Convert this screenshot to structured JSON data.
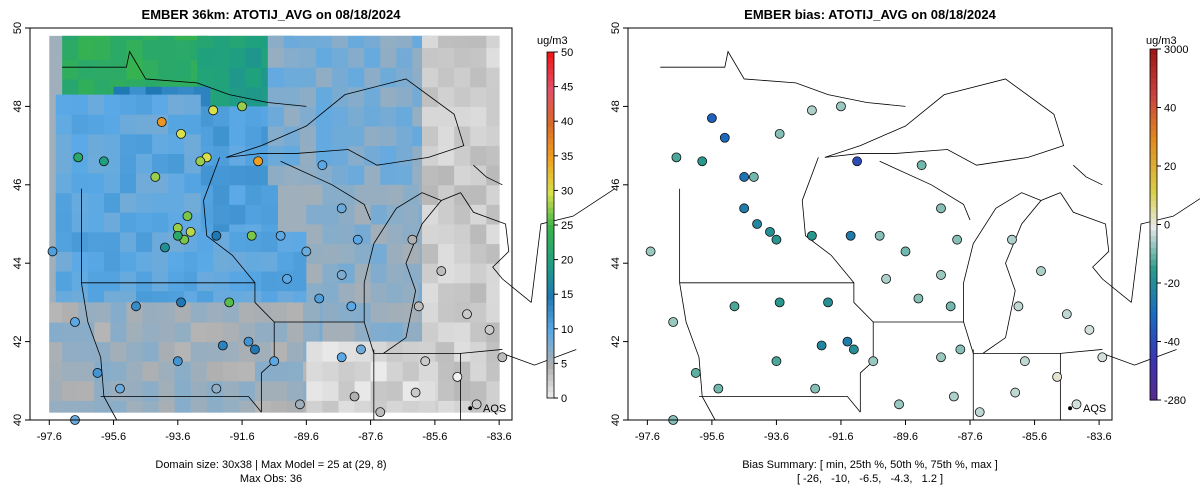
{
  "colors": {
    "blue": "#1a3bb8",
    "green": "#2e9b6a",
    "grey": "#9a9a9a",
    "light": "#e6e6e6",
    "red": "#e01a24"
  },
  "chart_data": [
    {
      "type": "heatmap",
      "title": "EMBER 36km: ATOTIJ_AVG on 08/18/2024",
      "xticks": [
        "-97.6",
        "-95.6",
        "-93.6",
        "-91.6",
        "-89.6",
        "-87.6",
        "-85.6",
        "-83.6"
      ],
      "yticks": [
        "50",
        "48",
        "46",
        "44",
        "42",
        "40"
      ],
      "xlim": [
        -98.2,
        -83.2
      ],
      "ylim": [
        40,
        50
      ],
      "colorbar": {
        "unit": "ug/m3",
        "ticks": [
          "50",
          "45",
          "40",
          "35",
          "30",
          "25",
          "20",
          "15",
          "10",
          "5",
          "0"
        ],
        "range": [
          0,
          50
        ]
      },
      "corner_label": "AQS",
      "footer": [
        "Domain size: 30x38 | Max Model = 25 at (29, 8)",
        "Max Obs: 36"
      ],
      "grid_zones": [
        {
          "lon": [
            -97.2,
            -93.0
          ],
          "lat": [
            48.2,
            49.8
          ],
          "value": 23
        },
        {
          "lon": [
            -93.0,
            -90.2
          ],
          "lat": [
            48.0,
            49.8
          ],
          "value": 20
        },
        {
          "lon": [
            -95.6,
            -93.0
          ],
          "lat": [
            44.0,
            48.2
          ],
          "value": 14
        },
        {
          "lon": [
            -93.0,
            -90.8
          ],
          "lat": [
            44.5,
            48.0
          ],
          "value": 11
        },
        {
          "lon": [
            -97.4,
            -93.0
          ],
          "lat": [
            42.8,
            48.2
          ],
          "value": 10
        },
        {
          "lon": [
            -93.0,
            -89.6
          ],
          "lat": [
            42.8,
            44.5
          ],
          "value": 10
        },
        {
          "lon": [
            -90.8,
            -86.0
          ],
          "lat": [
            46.0,
            49.8
          ],
          "value": 8
        },
        {
          "lon": [
            -89.6,
            -86.0
          ],
          "lat": [
            42.0,
            46.0
          ],
          "value": 7
        },
        {
          "lon": [
            -86.0,
            -83.2
          ],
          "lat": [
            40.0,
            49.8
          ],
          "value": 3
        },
        {
          "lon": [
            -98.2,
            -89.6
          ],
          "lat": [
            40.0,
            42.8
          ],
          "value": 6
        },
        {
          "lon": [
            -89.6,
            -86.0
          ],
          "lat": [
            40.0,
            42.0
          ],
          "value": 2
        }
      ],
      "points": [
        {
          "lon": -94.1,
          "lat": 47.6,
          "value": 36
        },
        {
          "lon": -91.1,
          "lat": 46.6,
          "value": 35
        },
        {
          "lon": -93.5,
          "lat": 47.3,
          "value": 30
        },
        {
          "lon": -92.5,
          "lat": 47.9,
          "value": 30
        },
        {
          "lon": -91.6,
          "lat": 48.0,
          "value": 28
        },
        {
          "lon": -92.7,
          "lat": 46.7,
          "value": 30
        },
        {
          "lon": -92.9,
          "lat": 46.6,
          "value": 28
        },
        {
          "lon": -94.3,
          "lat": 46.2,
          "value": 28
        },
        {
          "lon": -93.3,
          "lat": 45.2,
          "value": 27
        },
        {
          "lon": -93.6,
          "lat": 44.9,
          "value": 28
        },
        {
          "lon": -93.2,
          "lat": 44.8,
          "value": 29
        },
        {
          "lon": -93.4,
          "lat": 44.6,
          "value": 27
        },
        {
          "lon": -91.3,
          "lat": 44.7,
          "value": 27
        },
        {
          "lon": -92.0,
          "lat": 43.0,
          "value": 26
        },
        {
          "lon": -96.7,
          "lat": 46.7,
          "value": 22
        },
        {
          "lon": -95.9,
          "lat": 46.6,
          "value": 20
        },
        {
          "lon": -93.6,
          "lat": 44.7,
          "value": 22
        },
        {
          "lon": -94.0,
          "lat": 44.4,
          "value": 18
        },
        {
          "lon": -92.4,
          "lat": 44.7,
          "value": 15
        },
        {
          "lon": -93.5,
          "lat": 43.0,
          "value": 15
        },
        {
          "lon": -94.9,
          "lat": 42.9,
          "value": 13
        },
        {
          "lon": -91.4,
          "lat": 42.0,
          "value": 12
        },
        {
          "lon": -92.2,
          "lat": 41.9,
          "value": 14
        },
        {
          "lon": -91.2,
          "lat": 41.8,
          "value": 15
        },
        {
          "lon": -89.1,
          "lat": 46.5,
          "value": 10
        },
        {
          "lon": -88.5,
          "lat": 45.4,
          "value": 9
        },
        {
          "lon": -90.4,
          "lat": 44.7,
          "value": 10
        },
        {
          "lon": -89.6,
          "lat": 44.3,
          "value": 9
        },
        {
          "lon": -88.0,
          "lat": 44.6,
          "value": 10
        },
        {
          "lon": -88.5,
          "lat": 43.7,
          "value": 8
        },
        {
          "lon": -89.2,
          "lat": 43.1,
          "value": 11
        },
        {
          "lon": -88.2,
          "lat": 42.9,
          "value": 10
        },
        {
          "lon": -87.9,
          "lat": 41.8,
          "value": 9
        },
        {
          "lon": -88.5,
          "lat": 41.6,
          "value": 10
        },
        {
          "lon": -97.5,
          "lat": 44.3,
          "value": 11
        },
        {
          "lon": -96.8,
          "lat": 42.5,
          "value": 10
        },
        {
          "lon": -95.4,
          "lat": 40.8,
          "value": 9
        },
        {
          "lon": -96.1,
          "lat": 41.2,
          "value": 12
        },
        {
          "lon": -93.6,
          "lat": 41.5,
          "value": 12
        },
        {
          "lon": -90.6,
          "lat": 41.5,
          "value": 10
        },
        {
          "lon": -90.2,
          "lat": 43.6,
          "value": 10
        },
        {
          "lon": -86.3,
          "lat": 44.6,
          "value": 5
        },
        {
          "lon": -85.4,
          "lat": 43.8,
          "value": 4
        },
        {
          "lon": -86.1,
          "lat": 42.9,
          "value": 4
        },
        {
          "lon": -84.6,
          "lat": 42.7,
          "value": 3
        },
        {
          "lon": -83.9,
          "lat": 42.3,
          "value": 3
        },
        {
          "lon": -85.9,
          "lat": 41.5,
          "value": 3
        },
        {
          "lon": -84.9,
          "lat": 41.1,
          "value": 0
        },
        {
          "lon": -83.5,
          "lat": 41.6,
          "value": 4
        },
        {
          "lon": -84.3,
          "lat": 40.4,
          "value": 3
        },
        {
          "lon": -86.2,
          "lat": 40.7,
          "value": 3
        },
        {
          "lon": -87.3,
          "lat": 40.2,
          "value": 4
        },
        {
          "lon": -88.1,
          "lat": 40.6,
          "value": 5
        },
        {
          "lon": -89.8,
          "lat": 40.4,
          "value": 6
        },
        {
          "lon": -92.4,
          "lat": 40.8,
          "value": 7
        },
        {
          "lon": -96.8,
          "lat": 40.0,
          "value": 9
        }
      ]
    },
    {
      "type": "scatter",
      "title": "EMBER bias: ATOTIJ_AVG on 08/18/2024",
      "xticks": [
        "-97.6",
        "-95.6",
        "-93.6",
        "-91.6",
        "-89.6",
        "-87.6",
        "-85.6",
        "-83.6"
      ],
      "yticks": [
        "50",
        "48",
        "46",
        "44",
        "42",
        "40"
      ],
      "xlim": [
        -98.2,
        -83.2
      ],
      "ylim": [
        40,
        50
      ],
      "colorbar": {
        "unit": "ug/m3",
        "ticks": [
          "3000",
          "40",
          "20",
          "0",
          "-20",
          "-40",
          "-280"
        ]
      },
      "corner_label": "AQS",
      "footer": [
        "Bias Summary: [ min, 25th %, 50th %, 75th %, max ]",
        "[ -26,   -10,   -6.5,   -4.3,   1.2 ]"
      ],
      "points": [
        {
          "lon": -95.6,
          "lat": 47.7,
          "value": -22
        },
        {
          "lon": -95.2,
          "lat": 47.2,
          "value": -20
        },
        {
          "lon": -91.1,
          "lat": 46.6,
          "value": -26
        },
        {
          "lon": -94.6,
          "lat": 46.2,
          "value": -18
        },
        {
          "lon": -93.5,
          "lat": 47.3,
          "value": -5
        },
        {
          "lon": -92.5,
          "lat": 47.9,
          "value": -3
        },
        {
          "lon": -91.6,
          "lat": 48.0,
          "value": -4
        },
        {
          "lon": -94.3,
          "lat": 46.2,
          "value": -6
        },
        {
          "lon": -96.7,
          "lat": 46.7,
          "value": -8
        },
        {
          "lon": -95.9,
          "lat": 46.6,
          "value": -10
        },
        {
          "lon": -94.6,
          "lat": 45.4,
          "value": -16
        },
        {
          "lon": -94.2,
          "lat": 45.0,
          "value": -14
        },
        {
          "lon": -93.8,
          "lat": 44.8,
          "value": -12
        },
        {
          "lon": -93.6,
          "lat": 44.6,
          "value": -11
        },
        {
          "lon": -92.5,
          "lat": 44.7,
          "value": -10
        },
        {
          "lon": -91.3,
          "lat": 44.7,
          "value": -16
        },
        {
          "lon": -92.0,
          "lat": 43.0,
          "value": -12
        },
        {
          "lon": -93.5,
          "lat": 43.0,
          "value": -10
        },
        {
          "lon": -94.9,
          "lat": 42.9,
          "value": -8
        },
        {
          "lon": -92.2,
          "lat": 41.9,
          "value": -14
        },
        {
          "lon": -91.4,
          "lat": 42.0,
          "value": -16
        },
        {
          "lon": -91.2,
          "lat": 41.8,
          "value": -12
        },
        {
          "lon": -89.1,
          "lat": 46.5,
          "value": -6
        },
        {
          "lon": -88.5,
          "lat": 45.4,
          "value": -5
        },
        {
          "lon": -90.4,
          "lat": 44.7,
          "value": -5
        },
        {
          "lon": -89.6,
          "lat": 44.3,
          "value": -6
        },
        {
          "lon": -88.0,
          "lat": 44.6,
          "value": -5
        },
        {
          "lon": -88.5,
          "lat": 43.7,
          "value": -4
        },
        {
          "lon": -89.2,
          "lat": 43.1,
          "value": -5
        },
        {
          "lon": -88.2,
          "lat": 42.9,
          "value": -6
        },
        {
          "lon": -87.9,
          "lat": 41.8,
          "value": -5
        },
        {
          "lon": -88.5,
          "lat": 41.6,
          "value": -4
        },
        {
          "lon": -97.5,
          "lat": 44.3,
          "value": -4
        },
        {
          "lon": -96.8,
          "lat": 42.5,
          "value": -4
        },
        {
          "lon": -95.4,
          "lat": 40.8,
          "value": -6
        },
        {
          "lon": -96.1,
          "lat": 41.2,
          "value": -7
        },
        {
          "lon": -93.6,
          "lat": 41.5,
          "value": -8
        },
        {
          "lon": -90.6,
          "lat": 41.5,
          "value": -4
        },
        {
          "lon": -90.2,
          "lat": 43.6,
          "value": -3
        },
        {
          "lon": -86.3,
          "lat": 44.6,
          "value": -3
        },
        {
          "lon": -85.4,
          "lat": 43.8,
          "value": -3
        },
        {
          "lon": -86.1,
          "lat": 42.9,
          "value": -2
        },
        {
          "lon": -84.6,
          "lat": 42.7,
          "value": -2
        },
        {
          "lon": -83.9,
          "lat": 42.3,
          "value": -1
        },
        {
          "lon": -85.9,
          "lat": 41.5,
          "value": -2
        },
        {
          "lon": -84.9,
          "lat": 41.1,
          "value": 1.2
        },
        {
          "lon": -83.5,
          "lat": 41.6,
          "value": -1
        },
        {
          "lon": -84.3,
          "lat": 40.4,
          "value": -1
        },
        {
          "lon": -86.2,
          "lat": 40.7,
          "value": -2
        },
        {
          "lon": -87.3,
          "lat": 40.2,
          "value": -2
        },
        {
          "lon": -88.1,
          "lat": 40.6,
          "value": -3
        },
        {
          "lon": -89.8,
          "lat": 40.4,
          "value": -4
        },
        {
          "lon": -92.4,
          "lat": 40.8,
          "value": -5
        },
        {
          "lon": -96.8,
          "lat": 40.0,
          "value": -5
        }
      ]
    }
  ]
}
